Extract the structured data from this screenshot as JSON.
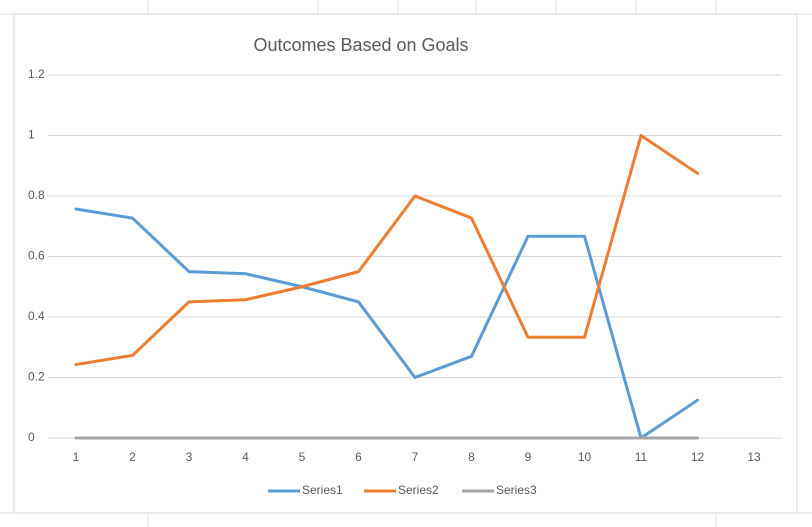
{
  "chart_data": {
    "type": "line",
    "title": "Outcomes Based on Goals",
    "categories": [
      1,
      2,
      3,
      4,
      5,
      6,
      7,
      8,
      9,
      10,
      11,
      12,
      13
    ],
    "series": [
      {
        "name": "Series1",
        "color": "#5b9bd5",
        "values": [
          0.757,
          0.727,
          0.55,
          0.543,
          0.5,
          0.45,
          0.2,
          0.27,
          0.667,
          0.667,
          0,
          0.125,
          null
        ]
      },
      {
        "name": "Series2",
        "color": "#ed7d31",
        "values": [
          0.243,
          0.273,
          0.45,
          0.457,
          0.5,
          0.55,
          0.8,
          0.727,
          0.333,
          0.333,
          1,
          0.875,
          null
        ]
      },
      {
        "name": "Series3",
        "color": "#a5a5a5",
        "values": [
          0,
          0,
          0,
          0,
          0,
          0,
          0,
          0,
          0,
          0,
          0,
          0,
          null
        ]
      }
    ],
    "ylim": [
      0,
      1.2
    ],
    "yticks": [
      0,
      0.2,
      0.4,
      0.6,
      0.8,
      1,
      1.2
    ],
    "grid": true,
    "legend": "bottom"
  }
}
